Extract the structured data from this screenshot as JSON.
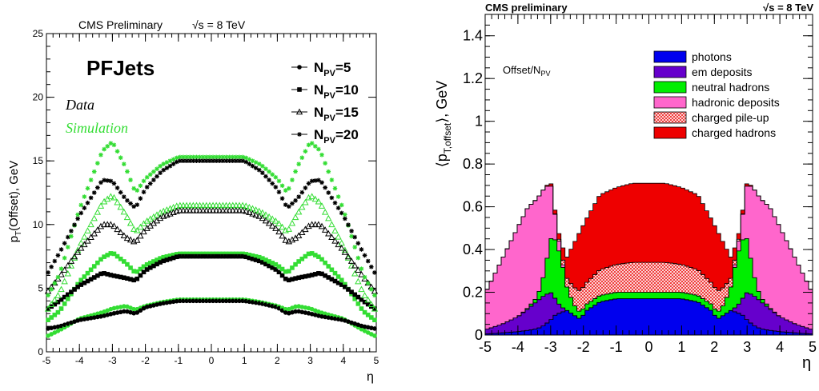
{
  "chart_data": [
    {
      "type": "scatter",
      "header": "CMS Preliminary",
      "energy": "√s = 8 TeV",
      "label": "PFJets",
      "data_label": "Data",
      "sim_label": "Simulation",
      "ylabel_main": "p",
      "ylabel_sub": "T",
      "ylabel_rest": "(Offset), GeV",
      "xlabel": "η",
      "xlim": [
        -5,
        5
      ],
      "ylim": [
        0,
        25
      ],
      "xticks": [
        "-5",
        "-4",
        "-3",
        "-2",
        "-1",
        "0",
        "1",
        "2",
        "3",
        "4",
        "5"
      ],
      "yticks": [
        "0",
        "5",
        "10",
        "15",
        "20",
        "25"
      ],
      "colors": {
        "data": "#000000",
        "simulation": "#33dd33"
      },
      "legend_placement": "top-right",
      "legend": [
        {
          "main": "N",
          "sub": "PV",
          "eq": "=5",
          "marker": "circle"
        },
        {
          "main": "N",
          "sub": "PV",
          "eq": "=10",
          "marker": "square"
        },
        {
          "main": "N",
          "sub": "PV",
          "eq": "=15",
          "marker": "open-triangle"
        },
        {
          "main": "N",
          "sub": "PV",
          "eq": "=20",
          "marker": "star"
        }
      ],
      "series": [
        {
          "npv": 5,
          "eta": [
            0,
            1,
            1.5,
            2,
            2.3,
            2.6,
            3,
            3.3,
            4,
            4.6,
            5
          ],
          "data": [
            4.0,
            4.0,
            3.8,
            3.5,
            3.0,
            3.2,
            3.0,
            2.8,
            2.5,
            2.0,
            1.8
          ],
          "sim": [
            4.1,
            4.1,
            3.9,
            3.6,
            3.3,
            3.6,
            3.4,
            3.1,
            2.6,
            1.7,
            1.2
          ]
        },
        {
          "npv": 10,
          "eta": [
            0,
            1,
            1.5,
            2,
            2.3,
            2.6,
            3,
            3.3,
            4,
            4.6,
            5
          ],
          "data": [
            7.5,
            7.5,
            7.1,
            6.4,
            5.6,
            5.8,
            6.0,
            6.2,
            5.2,
            4.0,
            3.3
          ],
          "sim": [
            7.7,
            7.7,
            7.4,
            6.8,
            6.2,
            7.0,
            7.8,
            7.4,
            5.5,
            3.2,
            2.4
          ]
        },
        {
          "npv": 15,
          "eta": [
            0,
            1,
            1.5,
            2,
            2.3,
            2.6,
            3,
            3.3,
            4,
            4.6,
            5
          ],
          "data": [
            11.1,
            11.1,
            10.6,
            9.6,
            8.6,
            9.0,
            10.0,
            10.0,
            8.0,
            5.9,
            4.6
          ],
          "sim": [
            11.5,
            11.5,
            11.0,
            10.2,
            9.4,
            10.8,
            12.3,
            11.7,
            8.3,
            4.6,
            3.2
          ]
        },
        {
          "npv": 20,
          "eta": [
            0,
            1,
            1.5,
            2,
            2.3,
            2.6,
            3,
            3.3,
            4,
            4.6,
            5
          ],
          "data": [
            15.0,
            15.0,
            14.2,
            12.8,
            11.3,
            12.0,
            13.4,
            13.5,
            10.7,
            7.8,
            6.0
          ],
          "sim": [
            15.3,
            15.3,
            14.7,
            13.6,
            12.5,
            14.5,
            16.5,
            15.8,
            11.2,
            6.1,
            4.2
          ]
        }
      ]
    },
    {
      "type": "area",
      "header": "CMS preliminary",
      "energy": "√s = 8 TeV",
      "annotation_main": "Offset/N",
      "annotation_sub": "PV",
      "ylabel_open": "⟨p",
      "ylabel_sub": "T,offset",
      "ylabel_close": "⟩, GeV",
      "xlabel": "η",
      "xlim": [
        -5,
        5
      ],
      "ylim": [
        0,
        1.5
      ],
      "xticks": [
        "-5",
        "-4",
        "-3",
        "-2",
        "-1",
        "0",
        "1",
        "2",
        "3",
        "4",
        "5"
      ],
      "yticks": [
        "0",
        "0.2",
        "0.4",
        "0.6",
        "0.8",
        "1",
        "1.2",
        "1.4"
      ],
      "legend_placement": "top-right",
      "x": [
        0,
        0.5,
        1,
        1.5,
        1.9,
        2.1,
        2.3,
        2.5,
        2.7,
        2.9,
        3.0,
        3.2,
        3.4,
        3.7,
        4.0,
        4.5,
        5.0
      ],
      "series": [
        {
          "name": "photons",
          "color": "#0000ee",
          "pattern": "solid",
          "values": [
            0.17,
            0.17,
            0.17,
            0.155,
            0.115,
            0.075,
            0.095,
            0.115,
            0.105,
            0.09,
            0.07,
            0.045,
            0.03,
            0.022,
            0.016,
            0.01,
            0.005
          ]
        },
        {
          "name": "em deposits",
          "color": "#6600cc",
          "pattern": "solid",
          "values": [
            0,
            0,
            0,
            0,
            0,
            0,
            0,
            0,
            0.03,
            0.09,
            0.13,
            0.14,
            0.13,
            0.1,
            0.07,
            0.04,
            0.02
          ]
        },
        {
          "name": "neutral hadrons",
          "color": "#00ee00",
          "pattern": "solid",
          "values": [
            0.03,
            0.03,
            0.03,
            0.03,
            0.03,
            0.03,
            0.05,
            0.11,
            0.24,
            0.28,
            0.25,
            0.1,
            0.02,
            0.005,
            0,
            0,
            0
          ]
        },
        {
          "name": "hadronic deposits",
          "color": "#ff66cc",
          "pattern": "solid",
          "values": [
            0,
            0,
            0,
            0,
            0,
            0,
            0,
            0,
            0.02,
            0.14,
            0.26,
            0.4,
            0.46,
            0.47,
            0.42,
            0.3,
            0.17
          ]
        },
        {
          "name": "charged pile-up",
          "color": "#ff3333",
          "pattern": "hatched",
          "values": [
            0.14,
            0.14,
            0.13,
            0.12,
            0.1,
            0.1,
            0.08,
            0.04,
            0.01,
            0,
            0,
            0,
            0,
            0,
            0,
            0,
            0
          ]
        },
        {
          "name": "charged hadrons",
          "color": "#ee0000",
          "pattern": "solid",
          "values": [
            0.37,
            0.37,
            0.36,
            0.35,
            0.3,
            0.28,
            0.2,
            0.1,
            0.03,
            0.015,
            0.01,
            0,
            0,
            0,
            0,
            0,
            0
          ]
        }
      ]
    }
  ]
}
